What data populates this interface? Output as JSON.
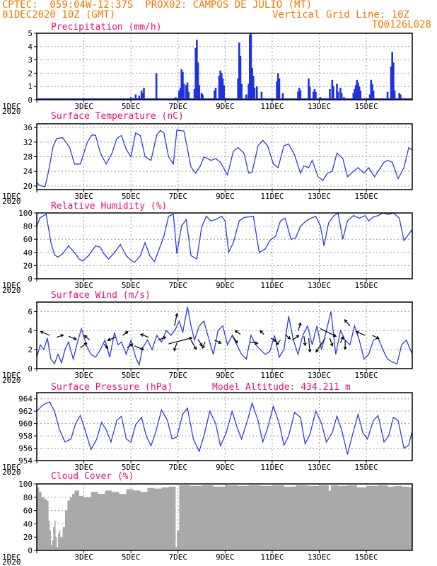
{
  "header": {
    "line1": "CPTEC:  059:04W-12:37S  PROX02: CAMPOS DE JULIO (MT)",
    "line2_left": "01DEC2020 10Z (GMT)",
    "line2_right": "Vertical Grid Line: 10Z",
    "line3_right": "TQ0126L028"
  },
  "x_tick_labels": [
    "1DEC",
    "3DEC",
    "5DEC",
    "7DEC",
    "9DEC",
    "11DEC",
    "13DEC",
    "15DEC"
  ],
  "x_year_label": "2020",
  "colors": {
    "line": "#2b3fd4",
    "bar": "#1f32e0",
    "arrow": "#000000",
    "cloud": "#a9a9a9",
    "title": "#e8107c",
    "header": "#f07800",
    "grid": "#9a9a9a"
  },
  "chart_data": [
    {
      "id": "precip",
      "type": "bar",
      "title": "Precipitation (mm/h)",
      "ylim": [
        0,
        5
      ],
      "yticks": [
        0,
        1,
        2,
        3,
        4,
        5
      ],
      "x_unit": "days since 1DEC 10Z",
      "bars": [
        [
          4.0,
          0.2
        ],
        [
          4.2,
          0.4
        ],
        [
          4.35,
          0.3
        ],
        [
          4.45,
          0.7
        ],
        [
          4.5,
          0.5
        ],
        [
          4.55,
          0.9
        ],
        [
          5.08,
          2.0
        ],
        [
          5.9,
          0.2
        ],
        [
          6.05,
          0.7
        ],
        [
          6.1,
          0.9
        ],
        [
          6.15,
          2.3
        ],
        [
          6.2,
          2.1
        ],
        [
          6.25,
          1.2
        ],
        [
          6.35,
          1.1
        ],
        [
          6.4,
          1.3
        ],
        [
          6.45,
          0.6
        ],
        [
          6.7,
          0.8
        ],
        [
          6.75,
          3.9
        ],
        [
          6.8,
          4.5
        ],
        [
          6.85,
          2.8
        ],
        [
          6.9,
          1.1
        ],
        [
          7.0,
          0.5
        ],
        [
          7.05,
          0.4
        ],
        [
          7.55,
          0.7
        ],
        [
          7.6,
          0.9
        ],
        [
          7.75,
          1.8
        ],
        [
          7.8,
          2.2
        ],
        [
          7.85,
          2.0
        ],
        [
          7.9,
          1.6
        ],
        [
          7.95,
          1.1
        ],
        [
          8.55,
          1.6
        ],
        [
          8.6,
          4.3
        ],
        [
          8.65,
          3.3
        ],
        [
          8.7,
          1.2
        ],
        [
          8.9,
          0.4
        ],
        [
          9.0,
          1.2
        ],
        [
          9.05,
          4.9
        ],
        [
          9.1,
          5.0
        ],
        [
          9.15,
          2.4
        ],
        [
          9.2,
          1.8
        ],
        [
          9.25,
          0.9
        ],
        [
          9.35,
          1.0
        ],
        [
          9.55,
          0.6
        ],
        [
          10.2,
          1.4
        ],
        [
          10.25,
          2.0
        ],
        [
          10.3,
          1.6
        ],
        [
          10.45,
          0.5
        ],
        [
          11.1,
          0.6
        ],
        [
          11.15,
          0.9
        ],
        [
          11.2,
          0.7
        ],
        [
          11.55,
          1.6
        ],
        [
          11.6,
          1.0
        ],
        [
          11.75,
          0.6
        ],
        [
          11.8,
          0.8
        ],
        [
          11.85,
          0.6
        ],
        [
          12.05,
          0.2
        ],
        [
          12.45,
          0.8
        ],
        [
          12.55,
          1.5
        ],
        [
          12.6,
          1.0
        ],
        [
          12.75,
          1.2
        ],
        [
          12.8,
          0.6
        ],
        [
          12.9,
          0.9
        ],
        [
          12.95,
          0.5
        ],
        [
          13.05,
          0.2
        ],
        [
          13.45,
          0.5
        ],
        [
          13.5,
          0.8
        ],
        [
          13.55,
          1.1
        ],
        [
          13.6,
          1.5
        ],
        [
          13.65,
          1.3
        ],
        [
          13.7,
          1.0
        ],
        [
          13.75,
          0.7
        ],
        [
          14.15,
          0.4
        ],
        [
          14.2,
          1.5
        ],
        [
          14.25,
          1.2
        ],
        [
          14.3,
          0.7
        ],
        [
          14.9,
          0.6
        ],
        [
          15.05,
          2.5
        ],
        [
          15.1,
          3.6
        ],
        [
          15.15,
          2.8
        ],
        [
          15.2,
          0.7
        ],
        [
          15.4,
          0.5
        ],
        [
          15.45,
          0.4
        ]
      ]
    },
    {
      "id": "temp",
      "type": "line",
      "title": "Surface Temperature (nC)",
      "ylim": [
        19,
        37
      ],
      "yticks": [
        20,
        24,
        28,
        32,
        36
      ],
      "x": [
        0,
        0.1,
        0.2,
        0.35,
        0.5,
        0.7,
        0.85,
        1.1,
        1.4,
        1.6,
        1.85,
        2.15,
        2.35,
        2.5,
        2.7,
        2.95,
        3.2,
        3.4,
        3.6,
        3.8,
        4.0,
        4.2,
        4.4,
        4.6,
        4.85,
        5.1,
        5.25,
        5.4,
        5.6,
        5.8,
        5.95,
        6.25,
        6.55,
        6.75,
        6.95,
        7.1,
        7.4,
        7.6,
        7.8,
        8.1,
        8.35,
        8.55,
        8.8,
        9.0,
        9.15,
        9.4,
        9.6,
        9.8,
        10.05,
        10.25,
        10.5,
        10.7,
        10.95,
        11.2,
        11.35,
        11.55,
        11.7,
        11.95,
        12.15,
        12.35,
        12.55,
        12.75,
        13.0,
        13.2,
        13.45,
        13.65,
        13.9,
        14.1,
        14.35,
        14.55,
        14.75,
        14.9,
        15.1,
        15.35,
        15.6,
        15.8,
        15.95
      ],
      "values": [
        21.0,
        20.2,
        20.0,
        19.8,
        24,
        31.0,
        33.0,
        33.2,
        30.5,
        26.0,
        26.0,
        32.0,
        34.0,
        33.8,
        29,
        26.0,
        29.0,
        33.0,
        33.8,
        30.0,
        28.0,
        34.5,
        33.8,
        28.0,
        27.0,
        34.0,
        35.2,
        34.5,
        28.0,
        26.0,
        35.3,
        35.0,
        25.2,
        23.5,
        25.5,
        28.0,
        27.0,
        27.5,
        26.5,
        23.0,
        29.5,
        30.5,
        29.0,
        23.5,
        23.8,
        31.0,
        32.5,
        31.0,
        26.0,
        25.0,
        31.0,
        31.5,
        28.5,
        23.5,
        25.5,
        25.0,
        27.0,
        22.5,
        21.5,
        23.5,
        24.0,
        29.0,
        27.5,
        22.5,
        24.0,
        25.0,
        23.5,
        25.0,
        22.5,
        24.5,
        26.5,
        27.0,
        26.5,
        22.0,
        25.0,
        30.5,
        29.8
      ]
    },
    {
      "id": "rh",
      "type": "line",
      "title": "Relative Humidity (%)",
      "ylim": [
        0,
        100
      ],
      "yticks": [
        0,
        20,
        40,
        60,
        80,
        100
      ],
      "x": [
        0,
        0.15,
        0.4,
        0.6,
        0.75,
        0.9,
        1.1,
        1.35,
        1.6,
        1.8,
        1.95,
        2.2,
        2.5,
        2.7,
        2.85,
        3.05,
        3.3,
        3.55,
        3.8,
        4.0,
        4.15,
        4.4,
        4.6,
        4.8,
        5.0,
        5.2,
        5.4,
        5.6,
        5.8,
        5.95,
        6.15,
        6.35,
        6.55,
        6.8,
        7.0,
        7.2,
        7.4,
        7.6,
        7.85,
        8.0,
        8.15,
        8.35,
        8.6,
        8.8,
        9.0,
        9.2,
        9.45,
        9.7,
        9.9,
        10.15,
        10.35,
        10.55,
        10.8,
        11.0,
        11.2,
        11.45,
        11.65,
        11.85,
        12.05,
        12.2,
        12.4,
        12.6,
        12.8,
        13.0,
        13.2,
        13.45,
        13.7,
        13.95,
        14.1,
        14.3,
        14.5,
        14.7,
        14.95,
        15.15,
        15.4,
        15.6,
        15.8,
        15.95
      ],
      "values": [
        80,
        93,
        98,
        55,
        36,
        33,
        38,
        50,
        40,
        30,
        27,
        35,
        50,
        48,
        38,
        30,
        40,
        52,
        35,
        28,
        25,
        35,
        55,
        35,
        26,
        45,
        65,
        95,
        98,
        38,
        80,
        90,
        35,
        30,
        78,
        95,
        88,
        90,
        95,
        88,
        40,
        55,
        88,
        93,
        94,
        95,
        40,
        45,
        58,
        65,
        88,
        92,
        60,
        62,
        80,
        88,
        92,
        95,
        80,
        50,
        85,
        95,
        100,
        60,
        88,
        96,
        92,
        96,
        88,
        94,
        96,
        100,
        98,
        100,
        92,
        58,
        68,
        75
      ]
    },
    {
      "id": "wind",
      "type": "line",
      "title": "Surface Wind (m/s)",
      "ylim": [
        0,
        7
      ],
      "yticks": [
        0,
        2,
        4,
        6
      ],
      "x": [
        0,
        0.15,
        0.3,
        0.45,
        0.6,
        0.75,
        0.9,
        1.05,
        1.2,
        1.35,
        1.55,
        1.75,
        1.9,
        2.1,
        2.3,
        2.5,
        2.7,
        2.9,
        3.1,
        3.3,
        3.45,
        3.6,
        3.8,
        4.0,
        4.2,
        4.35,
        4.5,
        4.7,
        4.9,
        5.1,
        5.3,
        5.5,
        5.7,
        5.9,
        6.05,
        6.2,
        6.4,
        6.55,
        6.7,
        6.9,
        7.1,
        7.3,
        7.5,
        7.7,
        7.9,
        8.1,
        8.3,
        8.5,
        8.7,
        8.9,
        9.1,
        9.3,
        9.5,
        9.7,
        9.9,
        10.1,
        10.3,
        10.5,
        10.7,
        10.9,
        11.1,
        11.3,
        11.5,
        11.7,
        11.9,
        12.1,
        12.3,
        12.5,
        12.7,
        12.9,
        13.1,
        13.3,
        13.5,
        13.7,
        13.9,
        14.1,
        14.3,
        14.5,
        14.7,
        14.9,
        15.1,
        15.3,
        15.5,
        15.7,
        15.95
      ],
      "values": [
        1.2,
        2.5,
        2.0,
        3.2,
        1.0,
        0.5,
        1.5,
        0.6,
        2.0,
        2.8,
        1.0,
        3.0,
        4.2,
        2.5,
        1.5,
        1.2,
        2.0,
        3.0,
        1.2,
        3.8,
        2.5,
        2.8,
        1.5,
        3.0,
        1.2,
        0.4,
        2.2,
        3.0,
        2.0,
        3.5,
        2.8,
        4.0,
        3.5,
        4.2,
        5.0,
        3.8,
        6.5,
        4.5,
        3.0,
        4.5,
        5.0,
        3.2,
        1.5,
        4.0,
        4.5,
        2.5,
        3.5,
        2.5,
        1.5,
        1.0,
        3.5,
        2.5,
        2.0,
        1.5,
        1.8,
        3.5,
        1.2,
        2.0,
        5.5,
        3.0,
        1.5,
        3.5,
        4.5,
        2.5,
        4.5,
        2.0,
        4.0,
        6.0,
        1.5,
        4.0,
        3.0,
        2.5,
        4.5,
        3.0,
        1.0,
        1.5,
        3.0,
        3.2,
        2.0,
        1.0,
        0.7,
        0.5,
        2.5,
        3.0,
        1.5
      ],
      "arrows": [
        [
          0.55,
          3.5,
          -0.35,
          0.25
        ],
        [
          0.85,
          3.3,
          0.25,
          0.15
        ],
        [
          1.35,
          3.4,
          0.3,
          -0.2
        ],
        [
          1.85,
          2.2,
          0.25,
          0.3
        ],
        [
          2.25,
          3.0,
          -0.2,
          0.3
        ],
        [
          2.85,
          2.6,
          0.15,
          -0.3
        ],
        [
          3.35,
          3.3,
          -0.3,
          -0.2
        ],
        [
          3.65,
          3.5,
          0.2,
          0.25
        ],
        [
          3.85,
          2.2,
          0.2,
          0.25
        ],
        [
          4.15,
          2.4,
          0.35,
          -0.25
        ],
        [
          4.75,
          3.3,
          -0.3,
          0.2
        ],
        [
          5.15,
          3.0,
          0.3,
          0.2
        ],
        [
          5.6,
          2.6,
          0.9,
          0.4
        ],
        [
          5.85,
          4.5,
          0.1,
          0.8
        ],
        [
          5.95,
          2.7,
          -0.1,
          -0.5
        ],
        [
          6.55,
          3.0,
          0.2,
          -0.6
        ],
        [
          6.85,
          3.1,
          0.15,
          -0.45
        ],
        [
          7.15,
          2.8,
          -0.1,
          -0.4
        ],
        [
          7.55,
          3.0,
          0.25,
          -0.2
        ],
        [
          8.3,
          3.5,
          0.2,
          -0.5
        ],
        [
          8.65,
          3.6,
          -0.2,
          0.25
        ],
        [
          9.05,
          2.8,
          0.3,
          -0.1
        ],
        [
          9.65,
          3.6,
          -0.15,
          0.25
        ],
        [
          9.95,
          3.2,
          0.2,
          -0.2
        ],
        [
          10.35,
          3.0,
          -0.15,
          -0.3
        ],
        [
          10.55,
          3.6,
          0.2,
          -0.3
        ],
        [
          10.85,
          3.0,
          0.25,
          0.3
        ],
        [
          11.1,
          4.0,
          0.1,
          0.5
        ],
        [
          11.35,
          3.4,
          0.05,
          -0.6
        ],
        [
          11.55,
          3.2,
          0.05,
          -0.9
        ],
        [
          12.05,
          4.2,
          0.6,
          -0.5
        ],
        [
          12.25,
          3.2,
          -0.35,
          -0.9
        ],
        [
          12.45,
          3.2,
          0.1,
          -0.5
        ],
        [
          12.9,
          2.7,
          0.1,
          0.4
        ],
        [
          13.1,
          3.0,
          0.0,
          -0.6
        ],
        [
          13.3,
          4.5,
          -0.2,
          0.4
        ],
        [
          13.95,
          3.5,
          -0.35,
          0.25
        ],
        [
          14.25,
          3.5,
          0.25,
          -0.2
        ]
      ]
    },
    {
      "id": "pressure",
      "type": "line",
      "title": "Surface Pressure (hPa)",
      "annotation": "Model Altitude: 434.211 m",
      "ylim": [
        954,
        965
      ],
      "yticks": [
        954,
        956,
        958,
        960,
        962,
        964
      ],
      "x": [
        0,
        0.2,
        0.35,
        0.55,
        0.75,
        0.95,
        1.2,
        1.45,
        1.65,
        1.85,
        2.05,
        2.3,
        2.55,
        2.75,
        2.95,
        3.15,
        3.4,
        3.6,
        3.8,
        4.0,
        4.2,
        4.45,
        4.65,
        4.85,
        5.05,
        5.3,
        5.55,
        5.75,
        5.95,
        6.2,
        6.4,
        6.65,
        6.9,
        7.1,
        7.35,
        7.6,
        7.8,
        8.05,
        8.3,
        8.5,
        8.7,
        8.95,
        9.15,
        9.4,
        9.6,
        9.8,
        10.05,
        10.3,
        10.5,
        10.7,
        10.95,
        11.2,
        11.4,
        11.6,
        11.85,
        12.1,
        12.3,
        12.55,
        12.75,
        12.95,
        13.2,
        13.4,
        13.65,
        13.85,
        14.05,
        14.3,
        14.5,
        14.75,
        14.95,
        15.15,
        15.35,
        15.6,
        15.8,
        15.95
      ],
      "values": [
        962.0,
        962.8,
        963.2,
        963.5,
        962.0,
        959.2,
        957.0,
        957.5,
        960.0,
        961.3,
        959.0,
        955.8,
        957.5,
        960.2,
        959.0,
        957.0,
        960.5,
        961.2,
        957.5,
        957.0,
        959.8,
        961.0,
        958.0,
        956.4,
        958.5,
        962.2,
        960.5,
        957.5,
        957.8,
        961.5,
        962.5,
        957.5,
        955.5,
        958.0,
        962.0,
        960.0,
        956.4,
        958.5,
        962.0,
        959.5,
        957.5,
        960.5,
        963.3,
        960.5,
        957.0,
        959.2,
        962.8,
        960.0,
        956.5,
        958.0,
        961.8,
        961.0,
        956.7,
        958.2,
        962.0,
        960.0,
        957.0,
        958.5,
        961.2,
        959.0,
        955.0,
        958.0,
        961.5,
        958.5,
        957.5,
        960.5,
        961.3,
        957.0,
        958.0,
        961.0,
        960.5,
        956.0,
        956.5,
        958.8
      ]
    },
    {
      "id": "cloud",
      "type": "area",
      "title": "Cloud Cover (%)",
      "ylim": [
        0,
        100
      ],
      "yticks": [
        0,
        20,
        40,
        60,
        80,
        100
      ],
      "x": [
        0,
        0.1,
        0.2,
        0.3,
        0.4,
        0.5,
        0.55,
        0.6,
        0.65,
        0.7,
        0.75,
        0.8,
        0.85,
        0.9,
        0.95,
        1.0,
        1.1,
        1.2,
        1.3,
        1.4,
        1.5,
        1.6,
        1.8,
        2.0,
        2.3,
        2.6,
        2.9,
        3.2,
        3.5,
        3.8,
        4.1,
        4.4,
        4.7,
        5.0,
        5.3,
        5.6,
        5.85,
        5.9,
        5.95,
        6.05,
        6.5,
        7.0,
        7.5,
        8.0,
        8.5,
        9.0,
        9.5,
        10.0,
        10.5,
        11.0,
        11.5,
        12.0,
        12.3,
        12.4,
        12.5,
        12.8,
        13.2,
        13.6,
        14.0,
        14.5,
        14.9,
        15.2,
        15.5,
        15.8,
        15.95
      ],
      "values": [
        95,
        88,
        80,
        78,
        75,
        45,
        30,
        8,
        15,
        35,
        45,
        20,
        5,
        25,
        30,
        20,
        35,
        60,
        75,
        80,
        85,
        90,
        82,
        80,
        88,
        85,
        90,
        88,
        85,
        92,
        90,
        88,
        94,
        93,
        95,
        96,
        96,
        5,
        30,
        98,
        97,
        98,
        96,
        98,
        97,
        98,
        97,
        98,
        96,
        98,
        97,
        98,
        98,
        90,
        98,
        97,
        98,
        95,
        97,
        98,
        96,
        97,
        96,
        95,
        97
      ]
    }
  ]
}
